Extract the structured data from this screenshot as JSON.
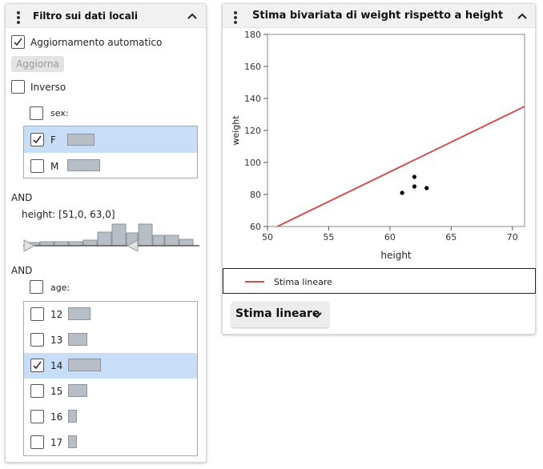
{
  "filter_panel": {
    "title": "Filtro sui dati locali",
    "auto_update_label": "Aggiornamento automatico",
    "auto_update_checked": true,
    "update_button_label": "Aggiorna",
    "inverse_label": "Inverso",
    "inverse_checked": false,
    "sex": {
      "label": "sex:",
      "items": [
        {
          "label": "F",
          "checked": true,
          "count_share": 0.5
        },
        {
          "label": "M",
          "checked": false,
          "count_share": 0.55
        }
      ]
    },
    "and_label_1": "AND",
    "height": {
      "label": "height: [51,0, 63,0]",
      "range": [
        51.0,
        63.0
      ]
    },
    "and_label_2": "AND",
    "age": {
      "label": "age:",
      "items": [
        {
          "label": "12",
          "checked": false
        },
        {
          "label": "13",
          "checked": false
        },
        {
          "label": "14",
          "checked": true
        },
        {
          "label": "15",
          "checked": false
        },
        {
          "label": "16",
          "checked": false
        },
        {
          "label": "17",
          "checked": false
        }
      ]
    }
  },
  "chart_panel": {
    "title": "Stima bivariata di weight rispetto a height",
    "legend_label": "Stima lineare",
    "dropdown_label": "Stima lineare",
    "colors": {
      "fit_line": "#d0504f",
      "points": "#000000"
    }
  },
  "chart_data": {
    "type": "scatter",
    "xlabel": "height",
    "ylabel": "weight",
    "xlim": [
      50,
      71
    ],
    "ylim": [
      60,
      180
    ],
    "xticks": [
      50,
      55,
      60,
      65,
      70
    ],
    "yticks": [
      60,
      80,
      100,
      120,
      140,
      160,
      180
    ],
    "points": [
      {
        "x": 61,
        "y": 81
      },
      {
        "x": 62,
        "y": 91
      },
      {
        "x": 62,
        "y": 85
      },
      {
        "x": 63,
        "y": 84
      }
    ],
    "fit_line": {
      "name": "Stima lineare",
      "x": [
        50,
        71
      ],
      "y": [
        57,
        135
      ]
    }
  }
}
